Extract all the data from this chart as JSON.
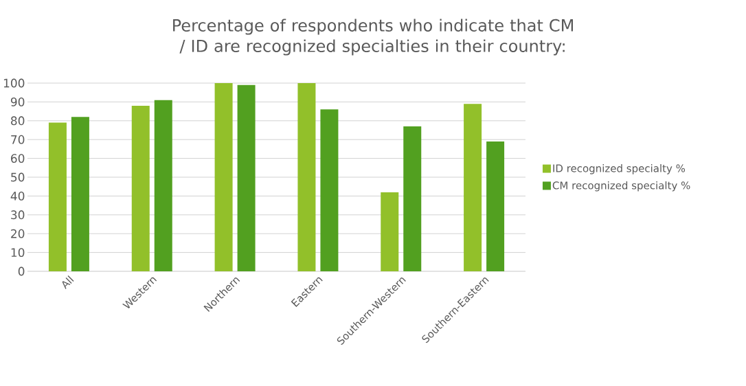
{
  "chart_data": {
    "type": "bar",
    "title": "Percentage of respondents who indicate that CM / ID are recognized specialties in their country:",
    "categories": [
      "All",
      "Western",
      "Northern",
      "Eastern",
      "Southern-Western",
      "Southern-Eastern"
    ],
    "series": [
      {
        "name": "ID recognized specialty %",
        "color": "#92c02a",
        "values": [
          79,
          88,
          100,
          100,
          42,
          89
        ]
      },
      {
        "name": "CM recognized specialty %",
        "color": "#52a020",
        "values": [
          82,
          91,
          99,
          86,
          77,
          69
        ]
      }
    ],
    "ylim": [
      0,
      100
    ],
    "yticks": [
      0,
      10,
      20,
      30,
      40,
      50,
      60,
      70,
      80,
      90,
      100
    ],
    "grid": "y",
    "legend": "right"
  }
}
